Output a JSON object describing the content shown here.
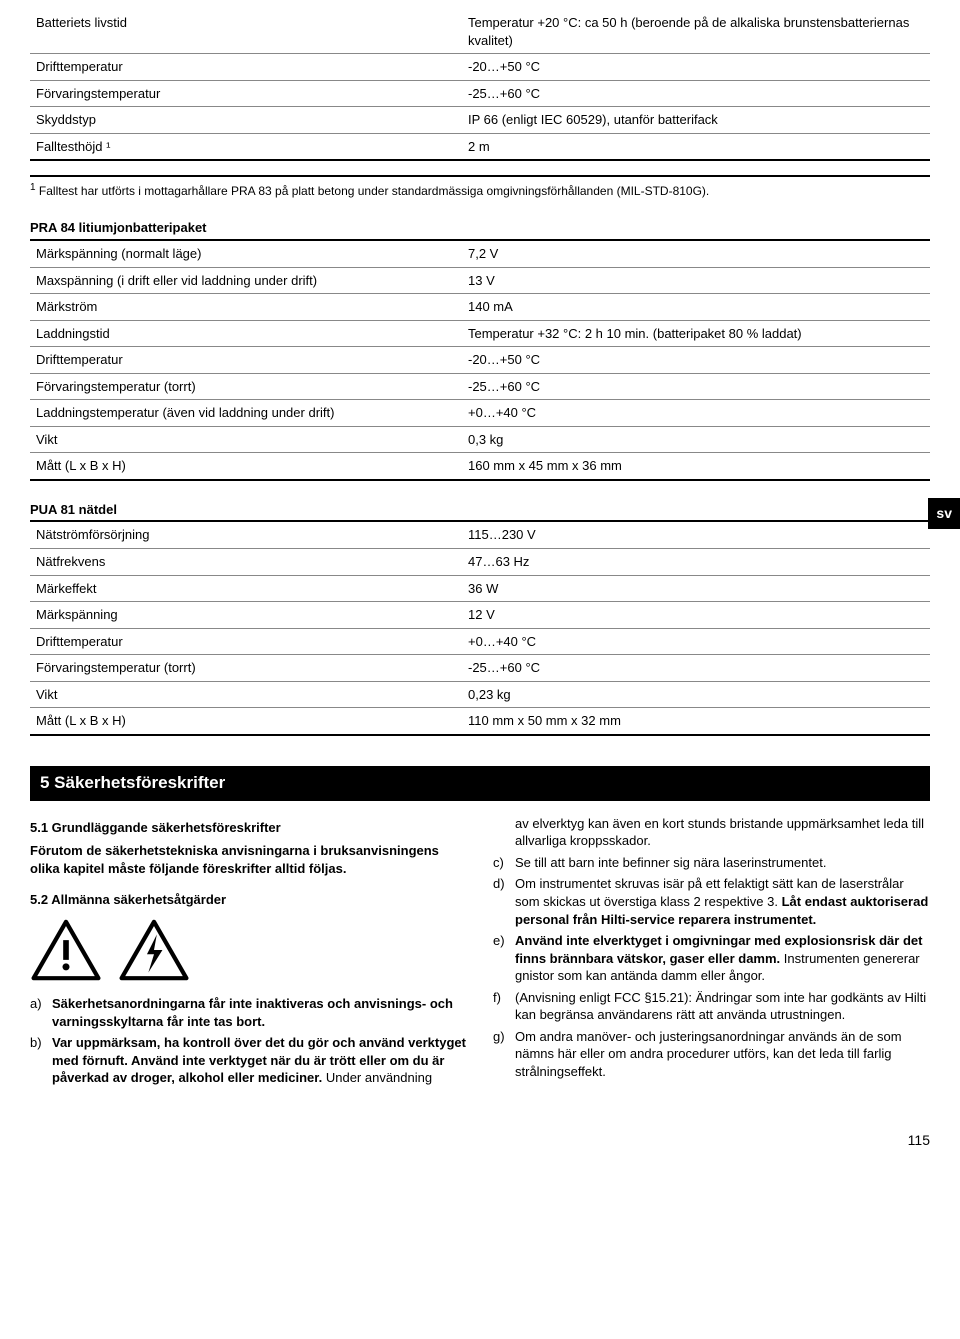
{
  "sideTab": "sv",
  "table1": {
    "rows": [
      [
        "Batteriets livstid",
        "Temperatur +20 °C: ca 50 h (beroende på de alkaliska brunstensbatteriernas kvalitet)"
      ],
      [
        "Drifttemperatur",
        "-20…+50 °C"
      ],
      [
        "Förvaringstemperatur",
        "-25…+60 °C"
      ],
      [
        "Skyddstyp",
        "IP 66 (enligt IEC 60529), utanför batterifack"
      ],
      [
        "Falltesthöjd ¹",
        "2 m"
      ]
    ],
    "footnote": "Falltest har utförts i mottagarhållare PRA 83 på platt betong under standardmässiga omgivningsförhållanden (MIL-STD-810G)."
  },
  "table2": {
    "title": "PRA 84 litiumjonbatteripaket",
    "rows": [
      [
        "Märkspänning (normalt läge)",
        "7,2 V"
      ],
      [
        "Maxspänning (i drift eller vid laddning under drift)",
        "13 V"
      ],
      [
        "Märkström",
        "140 mA"
      ],
      [
        "Laddningstid",
        "Temperatur +32 °C: 2 h 10 min. (batteripaket 80 % laddat)"
      ],
      [
        "Drifttemperatur",
        "-20…+50 °C"
      ],
      [
        "Förvaringstemperatur (torrt)",
        "-25…+60 °C"
      ],
      [
        "Laddningstemperatur (även vid laddning under drift)",
        "+0…+40 °C"
      ],
      [
        "Vikt",
        "0,3 kg"
      ],
      [
        "Mått (L x B x H)",
        "160 mm x 45 mm x 36 mm"
      ]
    ]
  },
  "table3": {
    "title": "PUA 81 nätdel",
    "rows": [
      [
        "Nätströmförsörjning",
        "115…230 V"
      ],
      [
        "Nätfrekvens",
        "47…63 Hz"
      ],
      [
        "Märkeffekt",
        "36 W"
      ],
      [
        "Märkspänning",
        "12 V"
      ],
      [
        "Drifttemperatur",
        "+0…+40 °C"
      ],
      [
        "Förvaringstemperatur (torrt)",
        "-25…+60 °C"
      ],
      [
        "Vikt",
        "0,23 kg"
      ],
      [
        "Mått (L x B x H)",
        "110 mm x 50 mm x 32 mm"
      ]
    ]
  },
  "section5": {
    "heading": "5 Säkerhetsföreskrifter",
    "sub1": "5.1 Grundläggande säkerhetsföreskrifter",
    "intro": "Förutom de säkerhetstekniska anvisningarna i bruksanvisningens olika kapitel måste följande föreskrifter alltid följas.",
    "sub2": "5.2 Allmänna säkerhetsåtgärder",
    "leftList": [
      {
        "l": "a)",
        "bold": "Säkerhetsanordningarna får inte inaktiveras och anvisnings- och varningsskyltarna får inte tas bort.",
        "rest": ""
      },
      {
        "l": "b)",
        "bold": "Var uppmärksam, ha kontroll över det du gör och använd verktyget med förnuft. Använd inte verktyget när du är trött eller om du är påverkad av droger, alkohol eller mediciner.",
        "rest": " Under användning"
      }
    ],
    "rightTop": "av elverktyg kan även en kort stunds bristande uppmärksamhet leda till allvarliga kroppsskador.",
    "rightList": [
      {
        "l": "c)",
        "text": "Se till att barn inte befinner sig nära laserinstrumentet."
      },
      {
        "l": "d)",
        "pre": "Om instrumentet skruvas isär på ett felaktigt sätt kan de laserstrålar som skickas ut överstiga klass 2 respektive 3. ",
        "bold": "Låt endast auktoriserad personal från Hilti-service reparera instrumentet."
      },
      {
        "l": "e)",
        "bold": "Använd inte elverktyget i omgivningar med explosionsrisk där det finns brännbara vätskor, gaser eller damm.",
        "rest": " Instrumenten genererar gnistor som kan antända damm eller ångor."
      },
      {
        "l": "f)",
        "text": "(Anvisning enligt FCC §15.21): Ändringar som inte har godkänts av Hilti kan begränsa användarens rätt att använda utrustningen."
      },
      {
        "l": "g)",
        "text": "Om andra manöver- och justeringsanordningar används än de som nämns här eller om andra procedurer utförs, kan det leda till farlig strålningseffekt."
      }
    ]
  },
  "pageNumber": "115"
}
